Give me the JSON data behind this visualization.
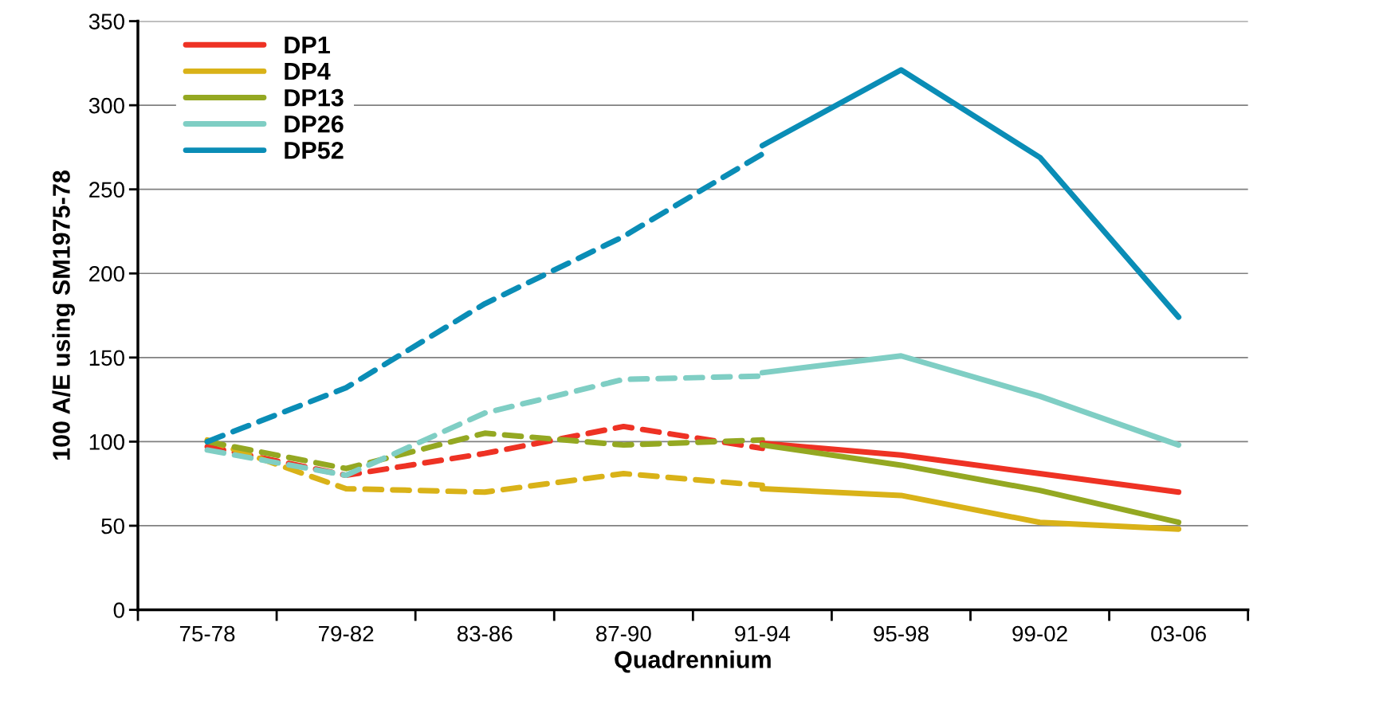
{
  "chart_data": {
    "type": "line",
    "xlabel": "Quadrennium",
    "ylabel": "100 A/E using SM1975-78",
    "categories": [
      "75-78",
      "79-82",
      "83-86",
      "87-90",
      "91-94",
      "95-98",
      "99-02",
      "03-06"
    ],
    "ylim": [
      0,
      350
    ],
    "yticks": [
      0,
      50,
      100,
      150,
      200,
      250,
      300,
      350
    ],
    "grid": "y",
    "legend": "top left",
    "marker": "none",
    "series": [
      {
        "color": "#ee3224",
        "line_style": "dashed",
        "values": [
          97,
          80,
          93,
          109,
          96,
          null,
          null,
          null
        ]
      },
      {
        "color": "#d9b218",
        "line_style": "dashed",
        "values": [
          101,
          72,
          70,
          81,
          74,
          null,
          null,
          null
        ]
      },
      {
        "color": "#94a822",
        "line_style": "dashed",
        "values": [
          100,
          84,
          105,
          98,
          101,
          null,
          null,
          null
        ]
      },
      {
        "color": "#7fcec4",
        "line_style": "dashed",
        "values": [
          95,
          80,
          117,
          137,
          139,
          null,
          null,
          null
        ]
      },
      {
        "color": "#0a8db6",
        "line_style": "dashed",
        "values": [
          100,
          132,
          182,
          222,
          271,
          null,
          null,
          null
        ]
      },
      {
        "name": "DP1",
        "color": "#ee3224",
        "line_style": "solid",
        "values": [
          null,
          null,
          null,
          null,
          99,
          92,
          81,
          70
        ]
      },
      {
        "name": "DP4",
        "color": "#d9b218",
        "line_style": "solid",
        "values": [
          null,
          null,
          null,
          null,
          72,
          68,
          52,
          48
        ]
      },
      {
        "name": "DP13",
        "color": "#94a822",
        "line_style": "solid",
        "values": [
          null,
          null,
          null,
          null,
          98,
          86,
          71,
          52
        ]
      },
      {
        "name": "DP26",
        "color": "#7fcec4",
        "line_style": "solid",
        "values": [
          null,
          null,
          null,
          null,
          141,
          151,
          127,
          98
        ]
      },
      {
        "name": "DP52",
        "color": "#0a8db6",
        "line_style": "solid",
        "values": [
          null,
          null,
          null,
          null,
          276,
          321,
          269,
          174
        ]
      }
    ]
  }
}
